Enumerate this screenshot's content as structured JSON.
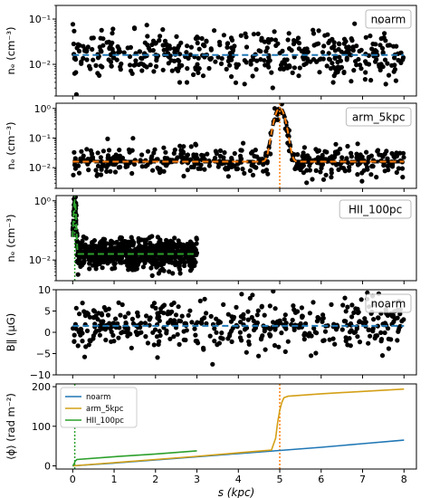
{
  "chart_data": [
    {
      "type": "scatter",
      "yscale": "log",
      "ylim": [
        0.002,
        0.2
      ],
      "xlim": [
        -0.4,
        8.3
      ],
      "yticks": [
        {
          "v": 0.01,
          "label": "10⁻²"
        },
        {
          "v": 0.1,
          "label": "10⁻¹"
        }
      ],
      "ylabel": "nₑ (cm⁻³)",
      "legend": "noarm",
      "legend_position": "top-right",
      "ref_color": "#1f77b4",
      "series": [
        {
          "model": "flat",
          "x_range": [
            0,
            8
          ],
          "n_points": 450,
          "base": 0.016,
          "scatter_dex": 0.25
        }
      ],
      "ref_line": [
        {
          "x": 0,
          "y": 0.016
        },
        {
          "x": 8,
          "y": 0.016
        }
      ]
    },
    {
      "type": "scatter",
      "yscale": "log",
      "ylim": [
        0.002,
        1.5
      ],
      "xlim": [
        -0.4,
        8.3
      ],
      "yticks": [
        {
          "v": 0.01,
          "label": "10⁻²"
        },
        {
          "v": 0.1,
          "label": "10⁻¹"
        },
        {
          "v": 1,
          "label": "10⁰"
        }
      ],
      "ylabel": "nₑ (cm⁻³)",
      "legend": "arm_5kpc",
      "legend_position": "top-right",
      "ref_color": "#ff7f0e",
      "vline": 5,
      "series": [
        {
          "model": "gaussian_arm",
          "x_range": [
            0,
            8
          ],
          "n_points": 450,
          "base": 0.016,
          "peak": 1.0,
          "center": 5.0,
          "sigma": 0.1,
          "scatter_dex": 0.25
        }
      ],
      "ref_line": "gaussian_arm"
    },
    {
      "type": "scatter",
      "yscale": "log",
      "ylim": [
        0.002,
        1.5
      ],
      "xlim": [
        -0.4,
        8.3
      ],
      "yticks": [
        {
          "v": 0.01,
          "label": "10⁻²"
        },
        {
          "v": 1,
          "label": "10⁰"
        }
      ],
      "ylabel": "nₑ (cm⁻³)",
      "legend": "HII_100pc",
      "legend_position": "top-right",
      "ref_color": "#2ca02c",
      "vline": 0.05,
      "series": [
        {
          "model": "hii_region",
          "x_range": [
            0,
            3
          ],
          "n_points": 700,
          "base": 0.016,
          "peak": 1.0,
          "center": 0.05,
          "sigma": 0.02,
          "scatter_dex": 0.25
        }
      ],
      "ref_line": "hii_region"
    },
    {
      "type": "scatter",
      "yscale": "linear",
      "ylim": [
        -10,
        10
      ],
      "xlim": [
        -0.4,
        8.3
      ],
      "yticks": [
        {
          "v": -10,
          "label": "−10"
        },
        {
          "v": -5,
          "label": "−5"
        },
        {
          "v": 0,
          "label": "0"
        },
        {
          "v": 5,
          "label": "5"
        },
        {
          "v": 10,
          "label": "10"
        }
      ],
      "ylabel": "B∥ (μG)",
      "legend": "noarm",
      "legend_position": "top-right",
      "ref_color": "#1f77b4",
      "series": [
        {
          "model": "linear_noise",
          "x_range": [
            0,
            8
          ],
          "n_points": 450,
          "base": 1.5,
          "sigma": 3.0
        }
      ],
      "ref_line": [
        {
          "x": 0,
          "y": 1.5
        },
        {
          "x": 8,
          "y": 1.5
        }
      ]
    },
    {
      "type": "line",
      "yscale": "linear",
      "ylim": [
        -8,
        207
      ],
      "xlim": [
        -0.4,
        8.3
      ],
      "yticks": [
        {
          "v": 0,
          "label": "0"
        },
        {
          "v": 100,
          "label": "100"
        },
        {
          "v": 200,
          "label": "200"
        }
      ],
      "xticks": [
        0,
        1,
        2,
        3,
        4,
        5,
        6,
        7,
        8
      ],
      "xlabel": "s (kpc)",
      "ylabel": "⟨ϕ⟩ (rad m⁻²)",
      "legend_position": "upper-left",
      "vlines": [
        {
          "x": 0.05,
          "color": "#2ca02c"
        },
        {
          "x": 5,
          "color": "#ff7f0e"
        }
      ],
      "series": [
        {
          "name": "noarm",
          "color": "#1f77b4",
          "x": [
            0,
            1,
            2,
            3,
            4,
            5,
            6,
            7,
            8
          ],
          "y": [
            0,
            7,
            15,
            23,
            31,
            39,
            47,
            56,
            65
          ]
        },
        {
          "name": "arm_5kpc",
          "color": "#d4a017",
          "x": [
            0,
            1,
            2,
            3,
            4,
            4.8,
            4.9,
            4.95,
            5.0,
            5.05,
            5.1,
            5.2,
            6,
            7,
            8
          ],
          "y": [
            0,
            8,
            16,
            24,
            33,
            40,
            70,
            110,
            140,
            160,
            172,
            176,
            182,
            188,
            194
          ]
        },
        {
          "name": "HII_100pc",
          "color": "#2ca02c",
          "x": [
            0,
            0.03,
            0.06,
            0.1,
            1,
            2,
            3
          ],
          "y": [
            0,
            4,
            12,
            16,
            23,
            30,
            38
          ]
        }
      ]
    }
  ]
}
